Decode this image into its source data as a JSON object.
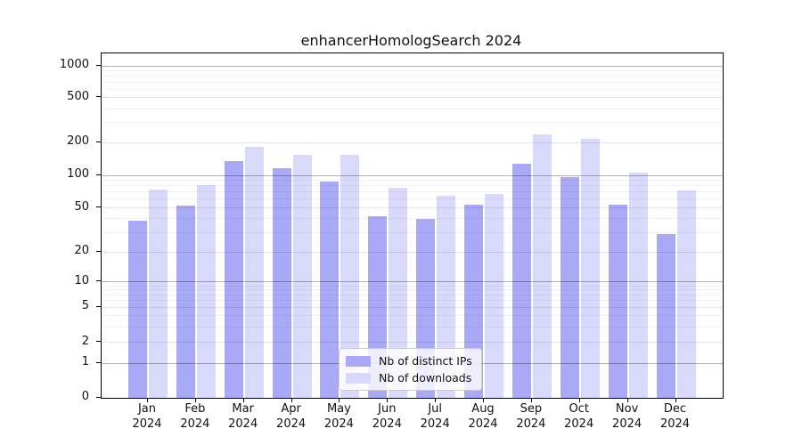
{
  "title": "enhancerHomologSearch 2024",
  "legend": {
    "items": [
      {
        "label": "Nb of distinct IPs"
      },
      {
        "label": "Nb of downloads"
      }
    ]
  },
  "colors": {
    "axis": "#000000",
    "grid_decade": "rgba(0,0,0,0.30)",
    "grid_major": "rgba(0,0,0,0.10)",
    "grid_minor": "rgba(0,0,0,0.05)"
  },
  "chart_data": {
    "type": "bar",
    "title": "enhancerHomologSearch 2024",
    "categories": [
      "Jan 2024",
      "Feb 2024",
      "Mar 2024",
      "Apr 2024",
      "May 2024",
      "Jun 2024",
      "Jul 2024",
      "Aug 2024",
      "Sep 2024",
      "Oct 2024",
      "Nov 2024",
      "Dec 2024"
    ],
    "series": [
      {
        "name": "Nb of distinct IPs",
        "color": "#a9a9f8",
        "values": [
          38,
          52,
          136,
          117,
          88,
          42,
          40,
          53,
          127,
          97,
          53,
          29
        ]
      },
      {
        "name": "Nb of downloads",
        "color": "#d9d9fb",
        "values": [
          74,
          81,
          181,
          155,
          154,
          77,
          65,
          67,
          236,
          214,
          106,
          73
        ]
      }
    ],
    "xlabel": "",
    "ylabel": "",
    "yscale": "symlog",
    "yticks": [
      0,
      1,
      2,
      5,
      10,
      20,
      50,
      100,
      200,
      500,
      1000
    ],
    "ylim": [
      0,
      1400
    ],
    "grid": true,
    "legend_position": "lower center"
  }
}
